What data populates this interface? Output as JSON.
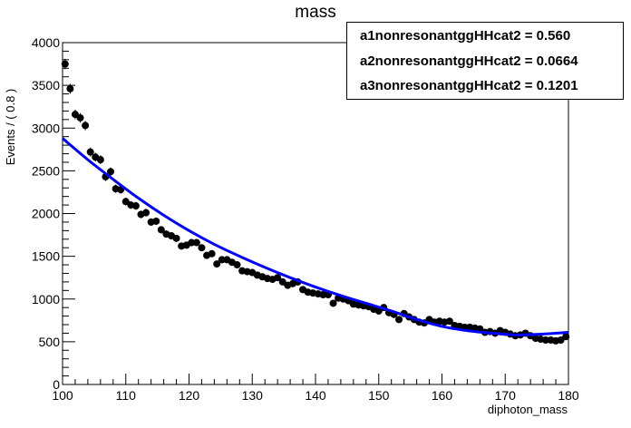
{
  "chart_data": {
    "type": "scatter",
    "title": "mass",
    "xlabel": "diphoton_mass",
    "ylabel": "Events / ( 0.8 )",
    "xlim": [
      100,
      180
    ],
    "ylim": [
      0,
      4000
    ],
    "x_ticks": [
      100,
      110,
      120,
      130,
      140,
      150,
      160,
      170,
      180
    ],
    "y_ticks": [
      0,
      500,
      1000,
      1500,
      2000,
      2500,
      3000,
      3500,
      4000
    ],
    "series": [
      {
        "name": "data",
        "style": "points-with-errors",
        "color": "#000000",
        "x": [
          100.4,
          101.2,
          102.0,
          102.8,
          103.6,
          104.4,
          105.2,
          106.0,
          106.8,
          107.6,
          108.4,
          109.2,
          110.0,
          110.8,
          111.6,
          112.4,
          113.2,
          114.0,
          114.8,
          115.6,
          116.4,
          117.2,
          118.0,
          118.8,
          119.6,
          120.4,
          121.2,
          122.0,
          122.8,
          123.6,
          124.4,
          125.2,
          126.0,
          126.8,
          127.6,
          128.4,
          129.2,
          130.0,
          130.8,
          131.6,
          132.4,
          133.2,
          134.0,
          134.8,
          135.6,
          136.4,
          137.2,
          138.0,
          138.8,
          139.6,
          140.4,
          141.2,
          142.0,
          142.8,
          143.6,
          144.4,
          145.2,
          146.0,
          146.8,
          147.6,
          148.4,
          149.2,
          150.0,
          150.8,
          151.6,
          152.4,
          153.2,
          154.0,
          154.8,
          155.6,
          156.4,
          157.2,
          158.0,
          158.8,
          159.6,
          160.4,
          161.2,
          162.0,
          162.8,
          163.6,
          164.4,
          165.2,
          166.0,
          166.8,
          167.6,
          168.4,
          169.2,
          170.0,
          170.8,
          171.6,
          172.4,
          173.2,
          174.0,
          174.8,
          175.6,
          176.4,
          177.2,
          178.0,
          178.8,
          179.6
        ],
        "y": [
          3750,
          3460,
          3160,
          3120,
          3030,
          2720,
          2660,
          2630,
          2430,
          2490,
          2290,
          2280,
          2140,
          2100,
          2090,
          1990,
          2010,
          1900,
          1910,
          1810,
          1760,
          1740,
          1710,
          1620,
          1630,
          1660,
          1660,
          1600,
          1510,
          1530,
          1410,
          1460,
          1460,
          1430,
          1400,
          1330,
          1320,
          1310,
          1280,
          1260,
          1240,
          1230,
          1250,
          1200,
          1160,
          1180,
          1200,
          1110,
          1080,
          1070,
          1060,
          1050,
          1050,
          950,
          1010,
          1000,
          980,
          940,
          930,
          920,
          910,
          880,
          860,
          900,
          840,
          820,
          760,
          830,
          790,
          760,
          730,
          720,
          760,
          730,
          740,
          730,
          740,
          690,
          680,
          670,
          670,
          660,
          650,
          610,
          620,
          600,
          630,
          610,
          590,
          570,
          580,
          600,
          570,
          540,
          530,
          520,
          520,
          510,
          520,
          560
        ]
      },
      {
        "name": "fit",
        "style": "line",
        "color": "#0000ff",
        "x": [
          100,
          104,
          108,
          112,
          116,
          120,
          124,
          128,
          132,
          136,
          140,
          144,
          148,
          152,
          156,
          160,
          164,
          168,
          172,
          176,
          180
        ],
        "y": [
          2880,
          2630,
          2400,
          2180,
          1980,
          1800,
          1640,
          1500,
          1370,
          1250,
          1140,
          1040,
          950,
          860,
          760,
          680,
          630,
          600,
          580,
          590,
          610
        ]
      }
    ],
    "legend_position": "top-right",
    "stats_box": [
      {
        "label": "a1nonresonantggHHcat2",
        "sep": " = ",
        "value": "0.560"
      },
      {
        "label": "a2nonresonantggHHcat2",
        "sep": " = ",
        "value": "0.0664"
      },
      {
        "label": "a3nonresonantggHHcat2",
        "sep": " = ",
        "value": "0.1201"
      }
    ]
  }
}
